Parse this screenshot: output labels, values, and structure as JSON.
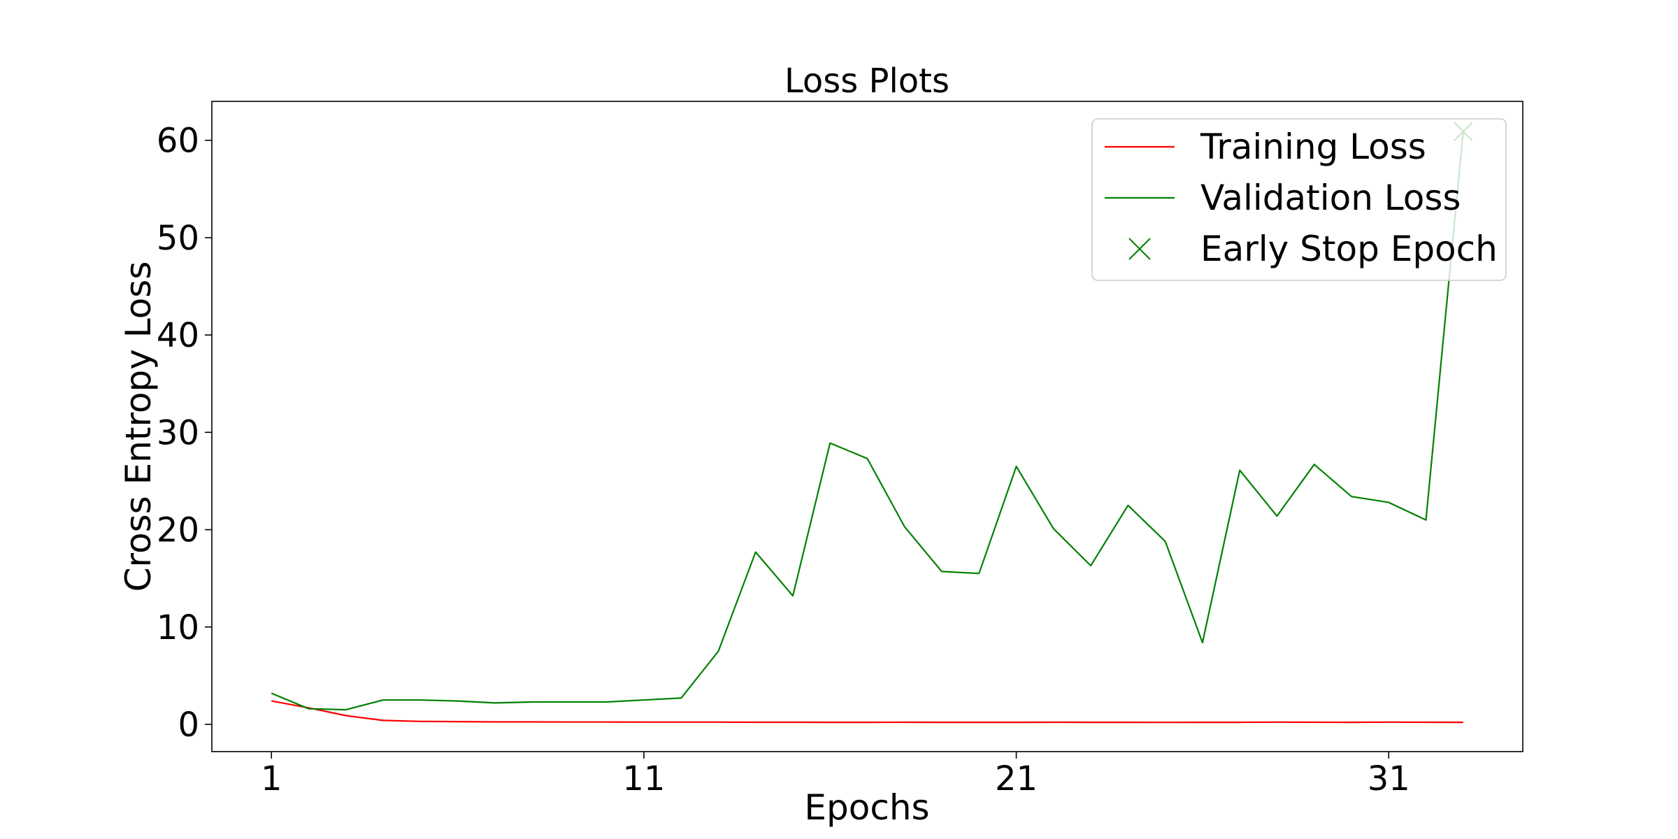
{
  "chart_data": {
    "type": "line",
    "title": "Loss Plots",
    "xlabel": "Epochs",
    "ylabel": "Cross Entropy Loss",
    "xlim": [
      -0.6,
      34.6
    ],
    "ylim": [
      -2.8,
      64
    ],
    "xticks": [
      1,
      11,
      21,
      31
    ],
    "yticks": [
      0,
      10,
      20,
      30,
      40,
      50,
      60
    ],
    "grid": false,
    "legend_position": "upper-right",
    "series": [
      {
        "name": "Training Loss",
        "color": "#ff0000",
        "x": [
          1,
          2,
          3,
          4,
          5,
          6,
          7,
          8,
          9,
          10,
          11,
          12,
          13,
          14,
          15,
          16,
          17,
          18,
          19,
          20,
          21,
          22,
          23,
          24,
          25,
          26,
          27,
          28,
          29,
          30,
          31,
          32,
          33
        ],
        "values": [
          2.4,
          1.7,
          0.9,
          0.4,
          0.3,
          0.28,
          0.25,
          0.25,
          0.24,
          0.24,
          0.23,
          0.23,
          0.23,
          0.22,
          0.22,
          0.21,
          0.21,
          0.22,
          0.21,
          0.21,
          0.21,
          0.22,
          0.21,
          0.21,
          0.2,
          0.21,
          0.21,
          0.23,
          0.22,
          0.21,
          0.23,
          0.22,
          0.21
        ]
      },
      {
        "name": "Validation Loss",
        "color": "#008000",
        "x": [
          1,
          2,
          3,
          4,
          5,
          6,
          7,
          8,
          9,
          10,
          11,
          12,
          13,
          14,
          15,
          16,
          17,
          18,
          19,
          20,
          21,
          22,
          23,
          24,
          25,
          26,
          27,
          28,
          29,
          30,
          31,
          32,
          33
        ],
        "values": [
          3.2,
          1.6,
          1.5,
          2.5,
          2.5,
          2.4,
          2.2,
          2.3,
          2.3,
          2.3,
          2.5,
          2.7,
          7.5,
          17.7,
          13.2,
          28.9,
          27.3,
          20.3,
          15.7,
          15.5,
          26.5,
          20.1,
          16.3,
          22.5,
          18.8,
          8.4,
          26.1,
          21.4,
          26.7,
          23.4,
          22.8,
          21.0,
          60.9
        ]
      },
      {
        "name": "Early Stop Epoch",
        "color": "#008000",
        "marker": "x",
        "x": [
          33
        ],
        "values": [
          60.9
        ]
      }
    ]
  }
}
